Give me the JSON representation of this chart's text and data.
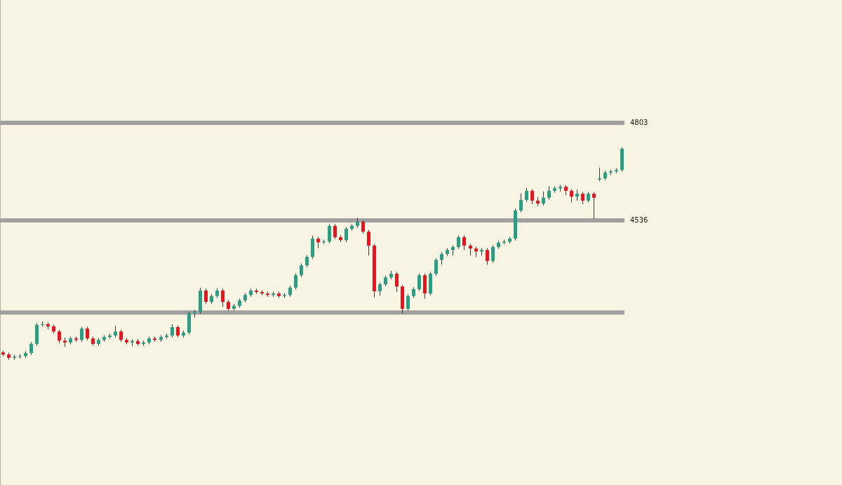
{
  "chart_data": {
    "type": "candlestick",
    "categories": [
      null,
      null,
      null,
      null,
      null,
      null,
      null,
      null,
      null,
      null,
      null,
      null,
      null,
      null,
      null,
      null,
      null,
      null,
      null,
      null,
      null,
      null,
      null,
      null,
      null,
      null,
      null,
      null,
      null,
      null,
      null,
      null,
      null,
      null,
      null,
      null,
      null,
      null,
      null,
      null,
      null,
      null,
      null,
      null,
      null,
      null,
      null,
      null,
      null,
      null,
      null,
      null,
      null,
      null,
      null,
      null,
      null,
      null,
      null,
      null,
      null,
      null,
      null,
      null,
      null,
      null,
      null,
      null,
      null,
      null,
      null,
      null,
      null,
      null,
      null,
      null,
      null,
      null,
      null,
      null,
      null,
      null,
      null,
      null,
      null,
      null,
      null,
      null,
      null,
      null,
      null,
      null,
      null,
      null,
      null,
      null,
      null,
      null,
      null,
      null,
      null,
      null,
      null,
      null,
      null,
      null,
      null,
      null,
      null,
      null,
      null
    ],
    "ohlc": [
      [
        4175,
        4180,
        4164,
        4169
      ],
      [
        4169,
        4174,
        4155,
        4160
      ],
      [
        4160,
        4168,
        4155,
        4163
      ],
      [
        4163,
        4170,
        4158,
        4165
      ],
      [
        4165,
        4178,
        4160,
        4173
      ],
      [
        4173,
        4203,
        4168,
        4198
      ],
      [
        4198,
        4255,
        4193,
        4250
      ],
      [
        4250,
        4260,
        4245,
        4252
      ],
      [
        4252,
        4257,
        4238,
        4246
      ],
      [
        4246,
        4251,
        4227,
        4232
      ],
      [
        4232,
        4237,
        4200,
        4207
      ],
      [
        4207,
        4215,
        4190,
        4202
      ],
      [
        4202,
        4218,
        4197,
        4213
      ],
      [
        4213,
        4218,
        4204,
        4209
      ],
      [
        4209,
        4245,
        4204,
        4240
      ],
      [
        4240,
        4245,
        4208,
        4213
      ],
      [
        4213,
        4218,
        4193,
        4198
      ],
      [
        4198,
        4214,
        4193,
        4209
      ],
      [
        4209,
        4222,
        4204,
        4217
      ],
      [
        4217,
        4226,
        4212,
        4221
      ],
      [
        4221,
        4248,
        4216,
        4232
      ],
      [
        4232,
        4237,
        4204,
        4209
      ],
      [
        4209,
        4214,
        4197,
        4202
      ],
      [
        4202,
        4211,
        4192,
        4206
      ],
      [
        4206,
        4211,
        4193,
        4198
      ],
      [
        4198,
        4207,
        4193,
        4202
      ],
      [
        4202,
        4218,
        4197,
        4213
      ],
      [
        4213,
        4218,
        4204,
        4209
      ],
      [
        4209,
        4222,
        4204,
        4217
      ],
      [
        4217,
        4226,
        4212,
        4221
      ],
      [
        4221,
        4252,
        4216,
        4244
      ],
      [
        4244,
        4249,
        4216,
        4221
      ],
      [
        4221,
        4234,
        4216,
        4229
      ],
      [
        4229,
        4287,
        4224,
        4282
      ],
      [
        4282,
        4291,
        4270,
        4286
      ],
      [
        4286,
        4352,
        4281,
        4344
      ],
      [
        4344,
        4349,
        4308,
        4313
      ],
      [
        4313,
        4334,
        4308,
        4329
      ],
      [
        4329,
        4350,
        4324,
        4344
      ],
      [
        4344,
        4349,
        4300,
        4313
      ],
      [
        4313,
        4318,
        4289,
        4294
      ],
      [
        4294,
        4307,
        4289,
        4302
      ],
      [
        4302,
        4322,
        4297,
        4317
      ],
      [
        4317,
        4337,
        4312,
        4332
      ],
      [
        4332,
        4349,
        4327,
        4344
      ],
      [
        4344,
        4349,
        4335,
        4340
      ],
      [
        4340,
        4345,
        4331,
        4336
      ],
      [
        4336,
        4341,
        4327,
        4332
      ],
      [
        4332,
        4341,
        4327,
        4336
      ],
      [
        4336,
        4341,
        4324,
        4329
      ],
      [
        4329,
        4337,
        4324,
        4332
      ],
      [
        4332,
        4357,
        4327,
        4352
      ],
      [
        4352,
        4391,
        4347,
        4386
      ],
      [
        4386,
        4418,
        4381,
        4413
      ],
      [
        4413,
        4441,
        4408,
        4436
      ],
      [
        4436,
        4494,
        4431,
        4486
      ],
      [
        4486,
        4491,
        4460,
        4476
      ],
      [
        4476,
        4483,
        4471,
        4478
      ],
      [
        4478,
        4526,
        4473,
        4521
      ],
      [
        4521,
        4526,
        4485,
        4490
      ],
      [
        4490,
        4495,
        4477,
        4482
      ],
      [
        4482,
        4518,
        4477,
        4513
      ],
      [
        4513,
        4526,
        4508,
        4521
      ],
      [
        4521,
        4543,
        4516,
        4532
      ],
      [
        4532,
        4537,
        4500,
        4505
      ],
      [
        4505,
        4510,
        4440,
        4467
      ],
      [
        4467,
        4472,
        4325,
        4342
      ],
      [
        4342,
        4366,
        4330,
        4361
      ],
      [
        4361,
        4385,
        4356,
        4380
      ],
      [
        4380,
        4398,
        4375,
        4390
      ],
      [
        4390,
        4395,
        4340,
        4355
      ],
      [
        4355,
        4360,
        4281,
        4294
      ],
      [
        4294,
        4334,
        4289,
        4329
      ],
      [
        4329,
        4353,
        4324,
        4348
      ],
      [
        4348,
        4391,
        4343,
        4386
      ],
      [
        4386,
        4391,
        4322,
        4336
      ],
      [
        4336,
        4395,
        4331,
        4390
      ],
      [
        4390,
        4433,
        4385,
        4428
      ],
      [
        4428,
        4449,
        4415,
        4444
      ],
      [
        4444,
        4460,
        4439,
        4455
      ],
      [
        4455,
        4468,
        4440,
        4463
      ],
      [
        4463,
        4495,
        4458,
        4490
      ],
      [
        4490,
        4495,
        4455,
        4467
      ],
      [
        4467,
        4472,
        4440,
        4459
      ],
      [
        4459,
        4464,
        4435,
        4451
      ],
      [
        4451,
        4460,
        4440,
        4455
      ],
      [
        4455,
        4460,
        4415,
        4425
      ],
      [
        4425,
        4468,
        4420,
        4463
      ],
      [
        4463,
        4480,
        4458,
        4475
      ],
      [
        4475,
        4483,
        4470,
        4478
      ],
      [
        4478,
        4491,
        4473,
        4486
      ],
      [
        4486,
        4568,
        4481,
        4563
      ],
      [
        4563,
        4610,
        4558,
        4592
      ],
      [
        4592,
        4625,
        4587,
        4617
      ],
      [
        4617,
        4622,
        4580,
        4590
      ],
      [
        4590,
        4600,
        4575,
        4582
      ],
      [
        4582,
        4615,
        4577,
        4598
      ],
      [
        4598,
        4630,
        4593,
        4617
      ],
      [
        4617,
        4629,
        4612,
        4624
      ],
      [
        4624,
        4633,
        4615,
        4628
      ],
      [
        4628,
        4633,
        4605,
        4617
      ],
      [
        4617,
        4622,
        4585,
        4601
      ],
      [
        4601,
        4620,
        4590,
        4609
      ],
      [
        4609,
        4614,
        4580,
        4590
      ],
      [
        4590,
        4614,
        4585,
        4609
      ],
      [
        4609,
        4614,
        4540,
        4598
      ],
      [
        4648,
        4680,
        4643,
        4651
      ],
      [
        4651,
        4672,
        4646,
        4667
      ],
      [
        4667,
        4675,
        4660,
        4670
      ],
      [
        4670,
        4679,
        4665,
        4674
      ],
      [
        4674,
        4736,
        4669,
        4732
      ]
    ],
    "colors": [
      "#e8141e",
      "#e8141e",
      "#26a085",
      "#26a085",
      "#26a085",
      "#26a085",
      "#26a085",
      "#26a085",
      "#e8141e",
      "#e8141e",
      "#e8141e",
      "#e8141e",
      "#26a085",
      "#e8141e",
      "#26a085",
      "#e8141e",
      "#e8141e",
      "#26a085",
      "#26a085",
      "#26a085",
      "#26a085",
      "#e8141e",
      "#e8141e",
      "#26a085",
      "#e8141e",
      "#26a085",
      "#26a085",
      "#e8141e",
      "#26a085",
      "#26a085",
      "#26a085",
      "#e8141e",
      "#26a085",
      "#26a085",
      "#26a085",
      "#26a085",
      "#e8141e",
      "#26a085",
      "#26a085",
      "#e8141e",
      "#e8141e",
      "#26a085",
      "#26a085",
      "#26a085",
      "#26a085",
      "#e8141e",
      "#e8141e",
      "#e8141e",
      "#26a085",
      "#e8141e",
      "#26a085",
      "#26a085",
      "#26a085",
      "#26a085",
      "#26a085",
      "#26a085",
      "#e8141e",
      "#26a085",
      "#26a085",
      "#e8141e",
      "#e8141e",
      "#26a085",
      "#26a085",
      "#26a085",
      "#e8141e",
      "#e8141e",
      "#e8141e",
      "#26a085",
      "#26a085",
      "#26a085",
      "#e8141e",
      "#e8141e",
      "#26a085",
      "#26a085",
      "#26a085",
      "#e8141e",
      "#26a085",
      "#26a085",
      "#26a085",
      "#26a085",
      "#26a085",
      "#26a085",
      "#e8141e",
      "#e8141e",
      "#e8141e",
      "#26a085",
      "#e8141e",
      "#26a085",
      "#26a085",
      "#26a085",
      "#26a085",
      "#26a085",
      "#26a085",
      "#26a085",
      "#e8141e",
      "#e8141e",
      "#26a085",
      "#26a085",
      "#26a085",
      "#26a085",
      "#e8141e",
      "#e8141e",
      "#26a085",
      "#e8141e",
      "#26a085",
      "#e8141e",
      "#26a085",
      "#26a085",
      "#26a085",
      "#26a085",
      "#26a085"
    ],
    "ylim": [
      3812,
      5139
    ],
    "yticks": [
      4536,
      4803
    ],
    "tick_labels": "y",
    "ref_lines": [
      {
        "axis": "y",
        "value": 4803,
        "label": null,
        "color": "#a0a0a0"
      },
      {
        "axis": "y",
        "value": 4536,
        "label": null,
        "color": "#a0a0a0"
      },
      {
        "axis": "y",
        "value": 4284,
        "label": null,
        "color": "#a0a0a0"
      }
    ]
  }
}
